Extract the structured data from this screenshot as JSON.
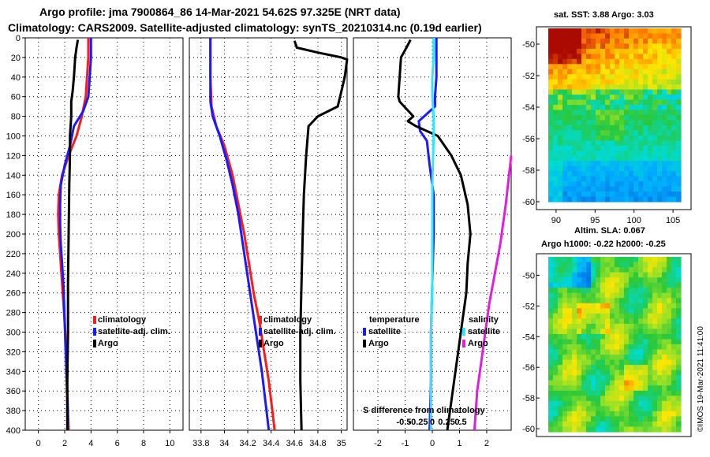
{
  "title_line1": "Argo profile: jma 7900864_86 14-Mar-2021 54.62S 97.325E (NRT data)",
  "title_line2": "Climatology: CARS2009. Satellite-adjusted climatology: synTS_20210314.nc (0.19d earlier)",
  "colors": {
    "climatology": "#ff1a1a",
    "satellite": "#1a1aff",
    "argo": "#000000",
    "sat_salinity": "#33e5ff",
    "clim_salinity": "#e01ee0"
  },
  "chart_data": [
    {
      "id": "temperature",
      "type": "line",
      "ylim": [
        400,
        0
      ],
      "xlim": [
        -1,
        11
      ],
      "yticks": [
        0,
        20,
        40,
        60,
        80,
        100,
        120,
        140,
        160,
        180,
        200,
        220,
        240,
        260,
        280,
        300,
        320,
        340,
        360,
        380,
        400
      ],
      "xticks": [
        0,
        2,
        4,
        6,
        8,
        10
      ],
      "legend": [
        "climatology",
        "satellite-adj. clim.",
        "Argo"
      ],
      "series": [
        {
          "name": "climatology",
          "color": "#ff1a1a",
          "points": [
            [
              3.8,
              0
            ],
            [
              3.8,
              20
            ],
            [
              3.7,
              40
            ],
            [
              3.6,
              60
            ],
            [
              3.3,
              80
            ],
            [
              2.9,
              100
            ],
            [
              2.3,
              120
            ],
            [
              1.8,
              140
            ],
            [
              1.55,
              160
            ],
            [
              1.5,
              180
            ],
            [
              1.55,
              200
            ],
            [
              1.65,
              220
            ],
            [
              1.75,
              240
            ],
            [
              1.85,
              260
            ],
            [
              1.95,
              280
            ],
            [
              2.05,
              300
            ],
            [
              2.1,
              320
            ],
            [
              2.15,
              340
            ],
            [
              2.2,
              360
            ],
            [
              2.25,
              380
            ],
            [
              2.3,
              400
            ]
          ]
        },
        {
          "name": "satellite-adj. clim.",
          "color": "#1a1aff",
          "points": [
            [
              4.0,
              0
            ],
            [
              4.0,
              20
            ],
            [
              3.9,
              40
            ],
            [
              3.8,
              60
            ],
            [
              3.4,
              75
            ],
            [
              2.7,
              90
            ],
            [
              2.4,
              110
            ],
            [
              2.0,
              130
            ],
            [
              1.7,
              150
            ],
            [
              1.65,
              170
            ],
            [
              1.65,
              190
            ],
            [
              1.7,
              210
            ],
            [
              1.8,
              230
            ],
            [
              1.9,
              250
            ],
            [
              1.95,
              270
            ],
            [
              2.0,
              290
            ],
            [
              2.05,
              310
            ],
            [
              2.1,
              330
            ],
            [
              2.15,
              350
            ],
            [
              2.2,
              370
            ],
            [
              2.25,
              400
            ]
          ]
        },
        {
          "name": "Argo",
          "color": "#000000",
          "points": [
            [
              3.0,
              2
            ],
            [
              2.9,
              10
            ],
            [
              2.8,
              20
            ],
            [
              2.7,
              40
            ],
            [
              2.6,
              55
            ],
            [
              2.5,
              65
            ],
            [
              2.5,
              80
            ],
            [
              2.4,
              100
            ],
            [
              2.4,
              120
            ],
            [
              2.35,
              150
            ],
            [
              2.3,
              200
            ],
            [
              2.25,
              250
            ],
            [
              2.25,
              300
            ],
            [
              2.2,
              350
            ],
            [
              2.2,
              400
            ]
          ]
        }
      ]
    },
    {
      "id": "salinity",
      "type": "line",
      "ylim": [
        400,
        0
      ],
      "xlim": [
        33.7,
        35.05
      ],
      "xticks": [
        33.8,
        34,
        34.2,
        34.4,
        34.6,
        34.8,
        35
      ],
      "legend": [
        "climatology",
        "satellite-adj. clim.",
        "Argo"
      ],
      "series": [
        {
          "name": "climatology",
          "color": "#ff1a1a",
          "points": [
            [
              33.88,
              0
            ],
            [
              33.88,
              40
            ],
            [
              33.89,
              70
            ],
            [
              33.93,
              90
            ],
            [
              34.0,
              110
            ],
            [
              34.07,
              140
            ],
            [
              34.12,
              170
            ],
            [
              34.17,
              200
            ],
            [
              34.21,
              230
            ],
            [
              34.25,
              260
            ],
            [
              34.3,
              290
            ],
            [
              34.34,
              320
            ],
            [
              34.38,
              350
            ],
            [
              34.41,
              380
            ],
            [
              34.43,
              400
            ]
          ]
        },
        {
          "name": "satellite-adj. clim.",
          "color": "#1a1aff",
          "points": [
            [
              33.88,
              0
            ],
            [
              33.88,
              40
            ],
            [
              33.88,
              65
            ],
            [
              33.9,
              80
            ],
            [
              33.96,
              100
            ],
            [
              34.02,
              125
            ],
            [
              34.07,
              150
            ],
            [
              34.12,
              180
            ],
            [
              34.17,
              220
            ],
            [
              34.22,
              260
            ],
            [
              34.27,
              300
            ],
            [
              34.32,
              340
            ],
            [
              34.36,
              380
            ],
            [
              34.38,
              400
            ]
          ]
        },
        {
          "name": "Argo",
          "color": "#000000",
          "points": [
            [
              34.6,
              3
            ],
            [
              34.62,
              10
            ],
            [
              34.8,
              15
            ],
            [
              35.0,
              20
            ],
            [
              35.05,
              22
            ],
            [
              35.03,
              40
            ],
            [
              35.0,
              55
            ],
            [
              34.97,
              70
            ],
            [
              34.8,
              80
            ],
            [
              34.72,
              90
            ],
            [
              34.7,
              120
            ],
            [
              34.68,
              160
            ],
            [
              34.67,
              200
            ],
            [
              34.66,
              250
            ],
            [
              34.65,
              300
            ],
            [
              34.65,
              350
            ],
            [
              34.66,
              400
            ]
          ]
        }
      ]
    },
    {
      "id": "difference",
      "type": "line",
      "ylim": [
        400,
        0
      ],
      "xlim": [
        -2.9,
        2.9
      ],
      "xticks": [
        -2,
        -1,
        0,
        1,
        2
      ],
      "xticks_salinity": [
        -0.5,
        -0.25,
        0,
        0.25,
        0.5
      ],
      "xlabel": "S difference from climatology",
      "legend_groups": [
        {
          "title": "temperature",
          "items": [
            "satellite",
            "Argo"
          ]
        },
        {
          "title": "salinity",
          "items": [
            "satellite",
            "Argo"
          ]
        }
      ],
      "series": [
        {
          "name": "temperature satellite",
          "color": "#1a1aff",
          "points": [
            [
              0.15,
              0
            ],
            [
              0.15,
              40
            ],
            [
              0.1,
              60
            ],
            [
              0.1,
              70
            ],
            [
              -0.3,
              80
            ],
            [
              -0.5,
              85
            ],
            [
              -0.45,
              95
            ],
            [
              -0.2,
              105
            ],
            [
              -0.1,
              130
            ],
            [
              0.05,
              160
            ],
            [
              0.05,
              200
            ],
            [
              0.0,
              250
            ],
            [
              -0.05,
              300
            ],
            [
              -0.05,
              350
            ],
            [
              -0.1,
              400
            ]
          ]
        },
        {
          "name": "temperature Argo",
          "color": "#000000",
          "points": [
            [
              -0.8,
              2
            ],
            [
              -0.95,
              10
            ],
            [
              -1.15,
              20
            ],
            [
              -1.2,
              40
            ],
            [
              -1.25,
              60
            ],
            [
              -1.2,
              65
            ],
            [
              -0.7,
              80
            ],
            [
              -0.9,
              85
            ],
            [
              -0.6,
              90
            ],
            [
              0.2,
              100
            ],
            [
              0.7,
              120
            ],
            [
              1.05,
              140
            ],
            [
              1.3,
              170
            ],
            [
              1.4,
              200
            ],
            [
              1.3,
              230
            ],
            [
              1.25,
              260
            ],
            [
              1.1,
              290
            ],
            [
              0.95,
              320
            ],
            [
              0.75,
              360
            ],
            [
              0.55,
              400
            ]
          ]
        },
        {
          "name": "salinity satellite",
          "color": "#33e5ff",
          "points": [
            [
              0.05,
              0
            ],
            [
              0.05,
              20
            ],
            [
              0.0,
              40
            ],
            [
              0.0,
              60
            ],
            [
              0.05,
              80
            ],
            [
              0.05,
              100
            ],
            [
              0.0,
              150
            ],
            [
              0.0,
              200
            ],
            [
              0.0,
              250
            ],
            [
              -0.05,
              300
            ],
            [
              -0.05,
              350
            ],
            [
              -0.05,
              400
            ]
          ]
        },
        {
          "name": "salinity Argo",
          "color": "#e01ee0",
          "points": [
            [
              2.9,
              120
            ],
            [
              2.7,
              170
            ],
            [
              2.5,
              210
            ],
            [
              2.3,
              240
            ],
            [
              2.1,
              270
            ],
            [
              1.95,
              300
            ],
            [
              1.8,
              330
            ],
            [
              1.65,
              360
            ],
            [
              1.55,
              400
            ]
          ]
        }
      ]
    },
    {
      "id": "sst_map",
      "type": "heatmap",
      "title": "sat. SST: 3.88 Argo: 3.03",
      "xticks": [
        90,
        95,
        100,
        105
      ],
      "yticks": [
        -50,
        -52,
        -54,
        -56,
        -58,
        -60
      ]
    },
    {
      "id": "sla_map",
      "type": "heatmap",
      "title_line1": "Altim. SLA: 0.067",
      "title_line2": "Argo h1000: -0.22 h2000: -0.25",
      "yticks": [
        -50,
        -52,
        -54,
        -56,
        -58,
        -60
      ]
    }
  ],
  "credit": "©IMOS 19-Mar-2021 11:41:00"
}
